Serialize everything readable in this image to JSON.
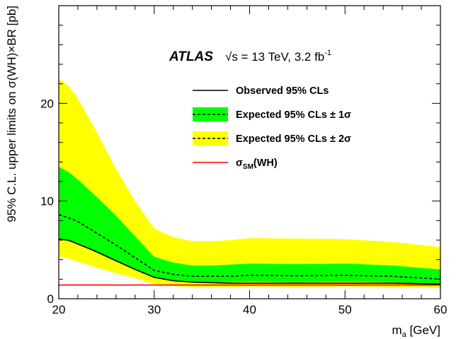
{
  "chart_data": {
    "type": "line",
    "experiment": "ATLAS",
    "energy_label": "√s = 13 TeV, 3.2 fb",
    "energy_label_sup": "-1",
    "xlabel": "m",
    "xlabel_sub": "a",
    "xlabel_unit": " [GeV]",
    "ylabel": "95% C.L. upper limits on σ(WH)×BR [pb]",
    "xlim": [
      20,
      60
    ],
    "ylim": [
      0,
      30
    ],
    "xticks": [
      20,
      30,
      40,
      50,
      60
    ],
    "yticks": [
      0,
      10,
      20
    ],
    "x": [
      20,
      21,
      22,
      24,
      26,
      28,
      30,
      32,
      34,
      36,
      38,
      40,
      45,
      50,
      55,
      60
    ],
    "series": [
      {
        "name": "Observed 95% CLs",
        "style": "solid",
        "color": "#000000",
        "values": [
          6.1,
          6.0,
          5.6,
          4.8,
          3.9,
          3.0,
          2.2,
          1.85,
          1.7,
          1.65,
          1.6,
          1.6,
          1.6,
          1.6,
          1.6,
          1.5
        ]
      },
      {
        "name": "Expected 95% CLs",
        "style": "dashed",
        "color": "#000000",
        "values": [
          8.6,
          8.3,
          7.9,
          6.7,
          5.5,
          4.2,
          2.9,
          2.5,
          2.3,
          2.3,
          2.3,
          2.4,
          2.35,
          2.4,
          2.3,
          2.0
        ]
      },
      {
        "name": "σSM(WH)",
        "style": "solid",
        "color": "#ff0000",
        "values": [
          1.4,
          1.4,
          1.4,
          1.4,
          1.4,
          1.4,
          1.4,
          1.4,
          1.4,
          1.4,
          1.4,
          1.4,
          1.4,
          1.4,
          1.4,
          1.4
        ]
      }
    ],
    "bands": [
      {
        "name": "Expected 95% CLs ± 2σ",
        "color": "#ffff00",
        "lower": [
          4.3,
          4.1,
          3.8,
          3.2,
          2.6,
          2.1,
          1.5,
          1.3,
          1.2,
          1.2,
          1.2,
          1.25,
          1.2,
          1.25,
          1.2,
          1.1
        ],
        "upper": [
          22.5,
          21.8,
          20.5,
          17.0,
          13.3,
          10.0,
          7.2,
          6.3,
          5.9,
          5.9,
          6.0,
          6.2,
          6.15,
          6.1,
          5.8,
          5.3
        ]
      },
      {
        "name": "Expected 95% CLs ± 1σ",
        "color": "#00ff00",
        "lower": [
          6.1,
          5.9,
          5.6,
          4.7,
          3.8,
          3.0,
          2.1,
          1.8,
          1.7,
          1.7,
          1.7,
          1.75,
          1.7,
          1.75,
          1.7,
          1.5
        ],
        "upper": [
          13.5,
          13.0,
          12.2,
          10.4,
          8.5,
          6.4,
          4.3,
          3.7,
          3.4,
          3.4,
          3.5,
          3.6,
          3.55,
          3.6,
          3.4,
          3.0
        ]
      }
    ],
    "legend": {
      "placement": "top-right",
      "entries": [
        {
          "label": "Observed 95% CLs",
          "kind": "line",
          "line": "solid",
          "color": "#000000"
        },
        {
          "label": "Expected 95% CLs ± 1σ",
          "kind": "band",
          "fill": "#00ff00",
          "line": "dashed",
          "color": "#000000"
        },
        {
          "label": "Expected 95% CLs ± 2σ",
          "kind": "band",
          "fill": "#ffff00",
          "line": "dashed",
          "color": "#000000"
        },
        {
          "label": "σ",
          "label_sub": "SM",
          "label_after": "(WH)",
          "kind": "line",
          "line": "solid",
          "color": "#ff0000"
        }
      ]
    },
    "grid": false
  }
}
